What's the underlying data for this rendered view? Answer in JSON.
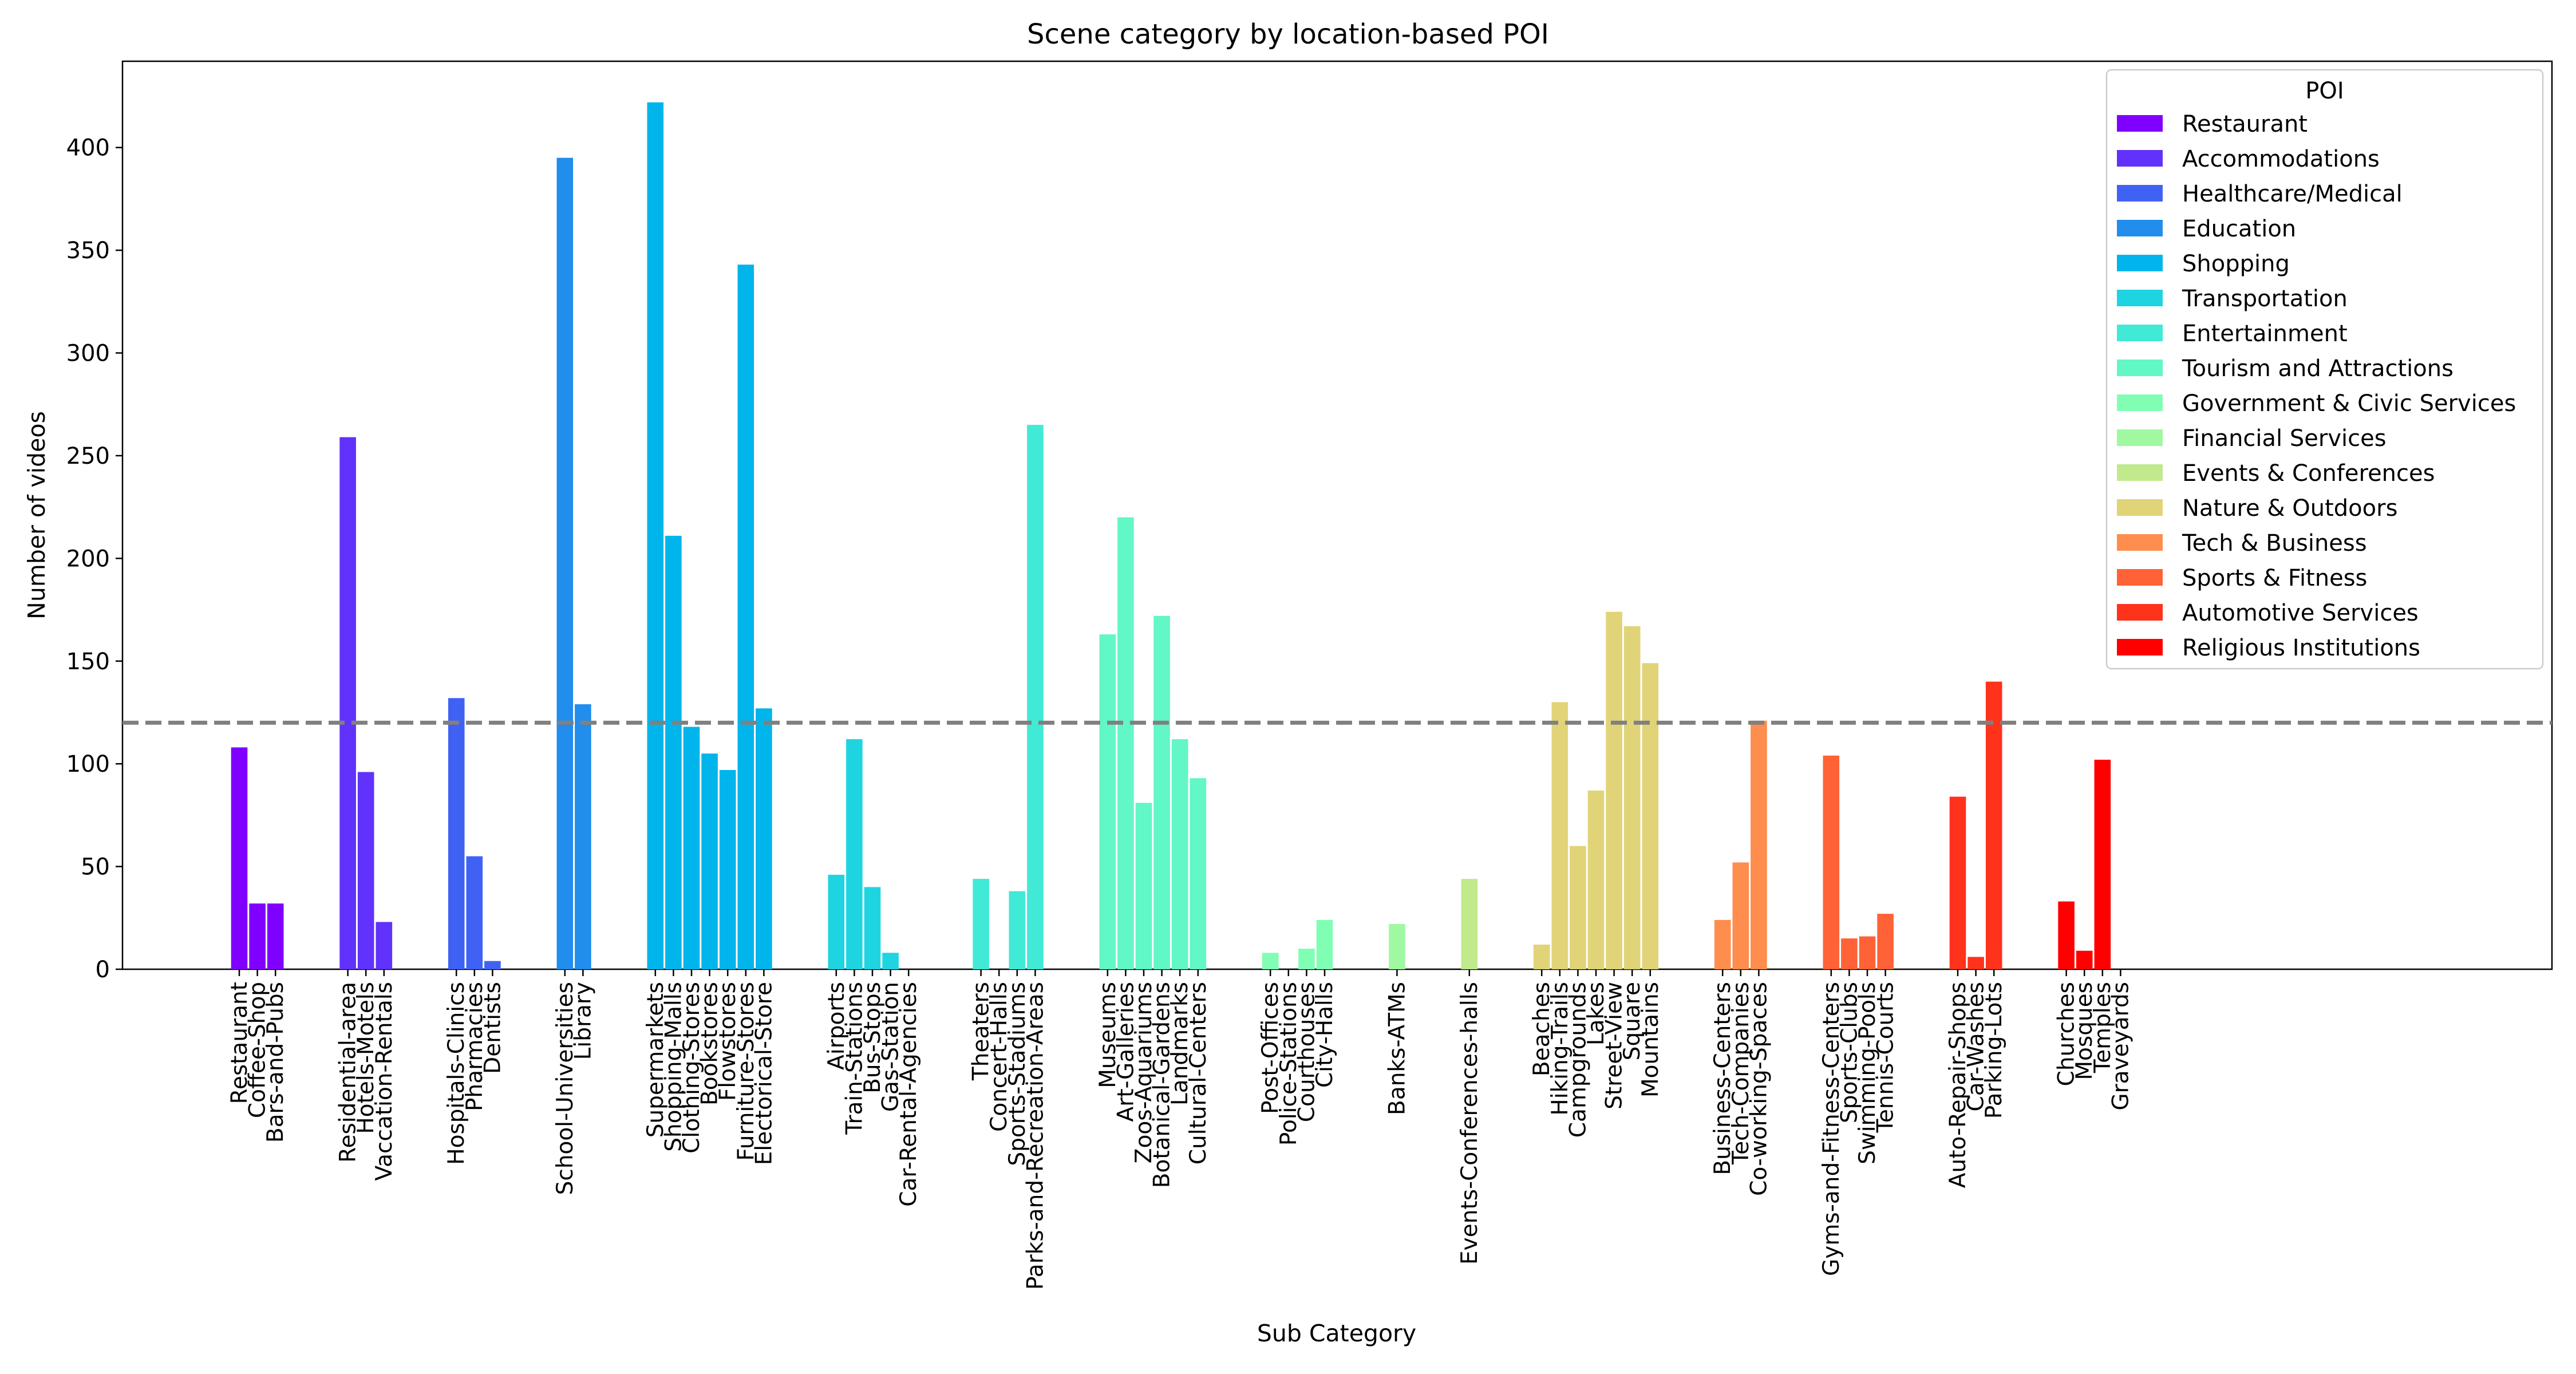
{
  "chart_data": {
    "type": "bar",
    "title": "Scene category by location-based POI",
    "xlabel": "Sub Category",
    "ylabel": "Number of videos",
    "ylim": [
      0,
      442
    ],
    "yticks": [
      0,
      50,
      100,
      150,
      200,
      250,
      300,
      350,
      400
    ],
    "reference_line": {
      "y": 120,
      "style": "dashed",
      "color": "#808080"
    },
    "grid": false,
    "legend": {
      "title": "POI",
      "position": "top-right"
    },
    "groups": [
      {
        "name": "Restaurant",
        "color": "#8000ff",
        "categories": [
          "Restaurant",
          "Coffee-Shop",
          "Bars-and-Pubs"
        ],
        "values": [
          108,
          32,
          32
        ]
      },
      {
        "name": "Accommodations",
        "color": "#6132fb",
        "categories": [
          "Residential-area",
          "Hotels-Motels",
          "Vaccation-Rentals"
        ],
        "values": [
          259,
          96,
          23
        ]
      },
      {
        "name": "Healthcare/Medical",
        "color": "#4062f4",
        "categories": [
          "Hospitals-Clinics",
          "Pharmacies",
          "Dentists"
        ],
        "values": [
          132,
          55,
          4
        ]
      },
      {
        "name": "Education",
        "color": "#218ded",
        "categories": [
          "School-Universities",
          "Library"
        ],
        "values": [
          395,
          129
        ]
      },
      {
        "name": "Shopping",
        "color": "#00b5eb",
        "categories": [
          "Supermarkets",
          "Shopping-Malls",
          "Clothing-Stores",
          "Bookstores",
          "Flowstores",
          "Furniture-Stores",
          "Electorical-Store"
        ],
        "values": [
          422,
          211,
          118,
          105,
          97,
          343,
          127
        ]
      },
      {
        "name": "Transportation",
        "color": "#1fd4e1",
        "categories": [
          "Airports",
          "Train-Stations",
          "Bus-Stops",
          "Gas-Station",
          "Car-Rental-Agencies"
        ],
        "values": [
          46,
          112,
          40,
          8,
          0
        ]
      },
      {
        "name": "Entertainment",
        "color": "#40ead6",
        "categories": [
          "Theaters",
          "Concert-Halls",
          "Sports-Stadiums",
          "Parks-and-Recreation-Areas"
        ],
        "values": [
          44,
          0,
          38,
          265
        ]
      },
      {
        "name": "Tourism and Attractions",
        "color": "#61f7c6",
        "categories": [
          "Museums",
          "Art-Galleries",
          "Zoos-Aquariums",
          "Botanical-Gardens",
          "Landmarks",
          "Cultural-Centers"
        ],
        "values": [
          163,
          220,
          81,
          172,
          112,
          93
        ]
      },
      {
        "name": "Government & Civic Services",
        "color": "#80ffb4",
        "categories": [
          "Post-Offices",
          "Police-Stations",
          "Courthouses",
          "City-Halls"
        ],
        "values": [
          8,
          0,
          10,
          24
        ]
      },
      {
        "name": "Financial Services",
        "color": "#a0f8a0",
        "categories": [
          "Banks-ATMs"
        ],
        "values": [
          22
        ]
      },
      {
        "name": "Events & Conferences",
        "color": "#c0ea8c",
        "categories": [
          "Events-Conferences-halls"
        ],
        "values": [
          44
        ]
      },
      {
        "name": "Nature & Outdoors",
        "color": "#e1d378",
        "categories": [
          "Beaches",
          "Hiking-Trails",
          "Campgrounds",
          "Lakes",
          "Street-View",
          "Square",
          "Mountains"
        ],
        "values": [
          12,
          130,
          60,
          87,
          174,
          167,
          149
        ]
      },
      {
        "name": "Tech & Business",
        "color": "#ff8d4d",
        "categories": [
          "Business-Centers",
          "Tech-Companies",
          "Co-working-Spaces"
        ],
        "values": [
          24,
          52,
          121
        ]
      },
      {
        "name": "Sports & Fitness",
        "color": "#ff6236",
        "categories": [
          "Gyms-and-Fitness-Centers",
          "Sports-Clubs",
          "Swimming-Pools",
          "Tennis-Courts"
        ],
        "values": [
          104,
          15,
          16,
          27
        ]
      },
      {
        "name": "Automotive Services",
        "color": "#ff321c",
        "categories": [
          "Auto-Repair-Shops",
          "Car-Washes",
          "Parking-Lots"
        ],
        "values": [
          84,
          6,
          140
        ]
      },
      {
        "name": "Religious Institutions",
        "color": "#ff0000",
        "categories": [
          "Churches",
          "Mosques",
          "Temples",
          "Graveyards"
        ],
        "values": [
          33,
          9,
          102,
          0
        ]
      }
    ]
  }
}
